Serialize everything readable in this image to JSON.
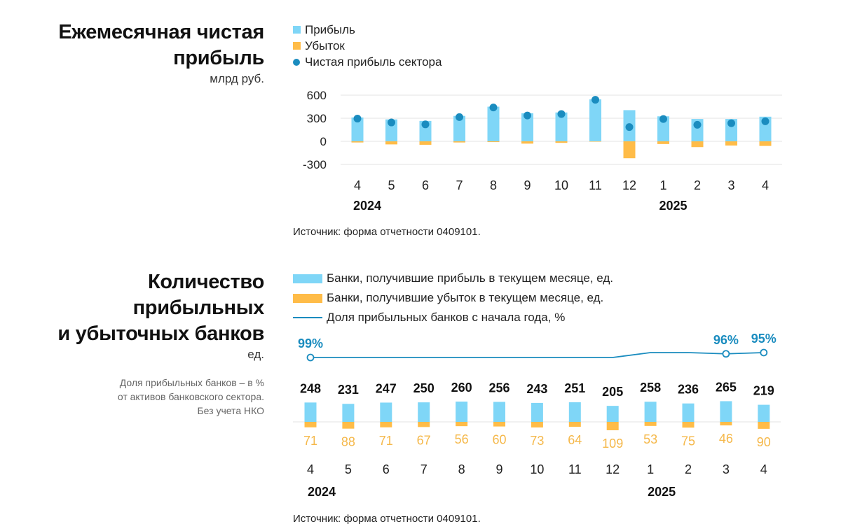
{
  "colors": {
    "profit": "#7fd6f7",
    "loss": "#ffbc48",
    "net": "#1a8cbf",
    "share_line": "#1a8cbf",
    "loss_label": "#f5b84a",
    "pct_label": "#1a8cbf"
  },
  "chart1": {
    "title_lines": [
      "Ежемесячная чистая",
      "прибыль"
    ],
    "unit": "млрд руб.",
    "legend": [
      "Прибыль",
      "Убыток",
      "Чистая прибыль сектора"
    ],
    "source": "Источник: форма отчетности 0409101."
  },
  "chart2": {
    "title_lines": [
      "Количество",
      "прибыльных",
      "и убыточных банков"
    ],
    "unit": "ед.",
    "note_lines": [
      "Доля прибыльных банков – в %",
      "от активов банковского сектора.",
      "Без учета НКО"
    ],
    "legend": [
      "Банки, получившие прибыль в текущем месяце, ед.",
      "Банки, получившие убыток в текущем месяце, ед.",
      "Доля прибыльных банков с начала года, %"
    ],
    "source": "Источник: форма отчетности 0409101."
  },
  "chart_data": [
    {
      "type": "bar",
      "title": "Ежемесячная чистая прибыль",
      "subtitle": "млрд руб.",
      "categories": [
        "4",
        "5",
        "6",
        "7",
        "8",
        "9",
        "10",
        "11",
        "12",
        "1",
        "2",
        "3",
        "4"
      ],
      "year_labels": [
        {
          "label": "2024",
          "at_index": 0
        },
        {
          "label": "2025",
          "at_index": 9
        }
      ],
      "yticks": [
        600,
        300,
        0,
        -300
      ],
      "ylim": [
        -300,
        600
      ],
      "grid": true,
      "legend_position": "top-left",
      "series": [
        {
          "name": "Прибыль",
          "type": "bar",
          "values": [
            310,
            285,
            265,
            330,
            450,
            365,
            375,
            545,
            405,
            325,
            290,
            290,
            320
          ]
        },
        {
          "name": "Убыток",
          "type": "bar",
          "values": [
            -15,
            -40,
            -45,
            -15,
            -10,
            -30,
            -20,
            -5,
            -220,
            -35,
            -75,
            -55,
            -60
          ]
        },
        {
          "name": "Чистая прибыль сектора",
          "type": "scatter",
          "values": [
            295,
            245,
            220,
            315,
            440,
            335,
            355,
            540,
            185,
            290,
            215,
            235,
            260
          ]
        }
      ]
    },
    {
      "type": "bar",
      "title": "Количество прибыльных и убыточных банков",
      "subtitle": "ед.",
      "categories": [
        "4",
        "5",
        "6",
        "7",
        "8",
        "9",
        "10",
        "11",
        "12",
        "1",
        "2",
        "3",
        "4"
      ],
      "year_labels": [
        {
          "label": "2024",
          "at_index": 0
        },
        {
          "label": "2025",
          "at_index": 9
        }
      ],
      "legend_position": "top-left",
      "series": [
        {
          "name": "Банки, получившие прибыль в текущем месяце, ед.",
          "type": "bar",
          "values": [
            248,
            231,
            247,
            250,
            260,
            256,
            243,
            251,
            205,
            258,
            236,
            265,
            219
          ]
        },
        {
          "name": "Банки, получившие убыток в текущем месяце, ед.",
          "type": "bar",
          "values": [
            71,
            88,
            71,
            67,
            56,
            60,
            73,
            64,
            109,
            53,
            75,
            46,
            90
          ]
        },
        {
          "name": "Доля прибыльных банков с начала года, %",
          "type": "line",
          "values": [
            99,
            99,
            99,
            99,
            99,
            99,
            99,
            99,
            99,
            95,
            95,
            96,
            95
          ],
          "point_labels": [
            {
              "index": 0,
              "label": "99%"
            },
            {
              "index": 11,
              "label": "96%"
            },
            {
              "index": 12,
              "label": "95%"
            }
          ]
        }
      ]
    }
  ]
}
